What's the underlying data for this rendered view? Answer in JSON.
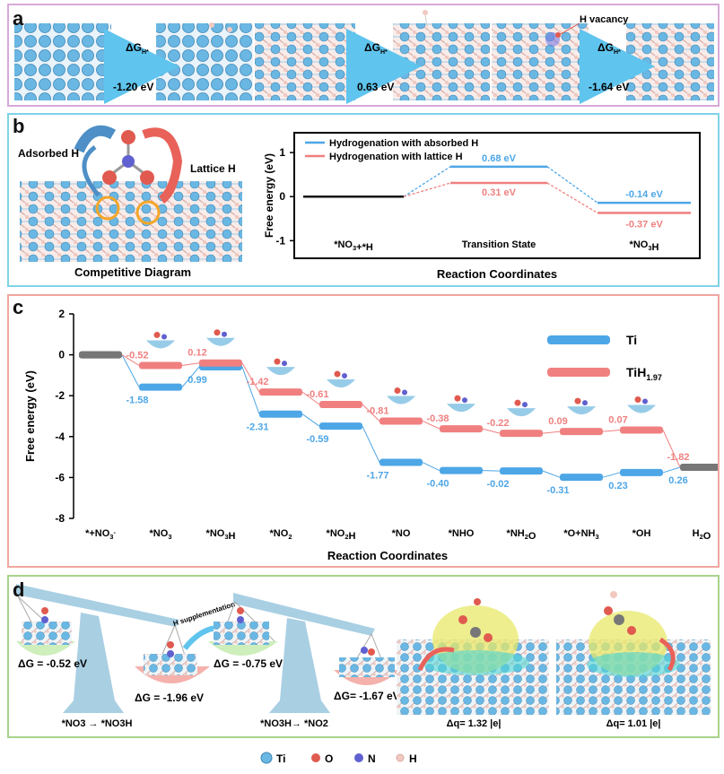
{
  "colors": {
    "blue": "#4da6e6",
    "red": "#f08080",
    "ti": "#6ab7e3",
    "o": "#e05a4f",
    "n": "#6060d0",
    "h": "#f1c9c1",
    "panel_a": "#d8a9d8",
    "panel_b": "#7fd3e6",
    "panel_c": "#f0a7a0",
    "panel_d": "#a8d38c"
  },
  "panel_a": {
    "label": "a",
    "dg1_symbol": "ΔG",
    "dg1_sub": "H*",
    "dg1": "-1.20 eV",
    "dg2_symbol": "ΔG",
    "dg2_sub": "H*",
    "dg2": "0.63 eV",
    "vacancy": "H vacancy",
    "dg3_symbol": "ΔG",
    "dg3_sub": "H*",
    "dg3": "-1.64 eV"
  },
  "panel_b": {
    "label": "b",
    "adsorbed": "Adsorbed H",
    "lattice": "Lattice H",
    "caption": "Competitive Diagram",
    "chart": {
      "type": "line",
      "ylabel": "Free energy (eV)",
      "xlabel": "Reaction Coordinates",
      "ylim": [
        -1.4,
        1.45
      ],
      "yticks": [
        "1",
        "0",
        "-1"
      ],
      "legend": [
        "Hydrogenation with absorbed H",
        "Hydrogenation with lattice H"
      ],
      "states": [
        "*NO3+*H",
        "Transition State",
        "*NO3H"
      ],
      "series": [
        {
          "name": "absorbed H",
          "values": [
            0,
            0.68,
            -0.14
          ],
          "labels": [
            "",
            "0.68 eV",
            "-0.14 eV"
          ]
        },
        {
          "name": "lattice H",
          "values": [
            0,
            0.31,
            -0.37
          ],
          "labels": [
            "",
            "0.31 eV",
            "-0.37 eV"
          ]
        }
      ]
    }
  },
  "panel_c": {
    "label": "c",
    "chart_data": {
      "type": "line",
      "ylabel": "Free energy (eV)",
      "xlabel": "Reaction Coordinates",
      "ylim": [
        -8,
        2
      ],
      "yticks": [
        "2",
        "0",
        "-2",
        "-4",
        "-6",
        "-8"
      ],
      "categories": [
        "*+NO3-",
        "*NO3",
        "*NO3H",
        "*NO2",
        "*NO2H",
        "*NO",
        "*NHO",
        "*NH2O",
        "*O+NH3",
        "*OH",
        "H2O"
      ],
      "legend": [
        "Ti",
        "TiH1.97"
      ],
      "series": [
        {
          "name": "Ti",
          "values": [
            0,
            -1.58,
            -0.59,
            -2.9,
            -3.49,
            -5.26,
            -5.66,
            -5.68,
            -5.99,
            -5.76,
            -5.5
          ],
          "labels": [
            "",
            "-1.58",
            "0.99",
            "-2.31",
            "-0.59",
            "-1.77",
            "-0.40",
            "-0.02",
            "-0.31",
            "0.23",
            "0.26"
          ]
        },
        {
          "name": "TiH1.97",
          "values": [
            0,
            -0.52,
            -0.4,
            -1.82,
            -2.43,
            -3.24,
            -3.62,
            -3.84,
            -3.75,
            -3.68,
            -5.5
          ],
          "labels": [
            "",
            "-0.52",
            "0.12",
            "-1.42",
            "-0.61",
            "-0.81",
            "-0.38",
            "-0.22",
            "0.09",
            "0.07",
            "-1.82"
          ]
        }
      ]
    }
  },
  "panel_d": {
    "label": "d",
    "supplement": "H supplementation",
    "dg_a": "ΔG = -0.52 eV",
    "dg_b": "ΔG = -1.96 eV",
    "dg_c": "ΔG = -0.75 eV",
    "dg_d": "ΔG= -1.67 eV",
    "cap1": "*NO3 → *NO3H",
    "cap2": "*NO3H→ *NO2",
    "cap3": "Δq= 1.32 |e|",
    "cap4": "Δq= 1.01 |e|"
  },
  "legend": [
    "Ti",
    "O",
    "N",
    "H"
  ]
}
